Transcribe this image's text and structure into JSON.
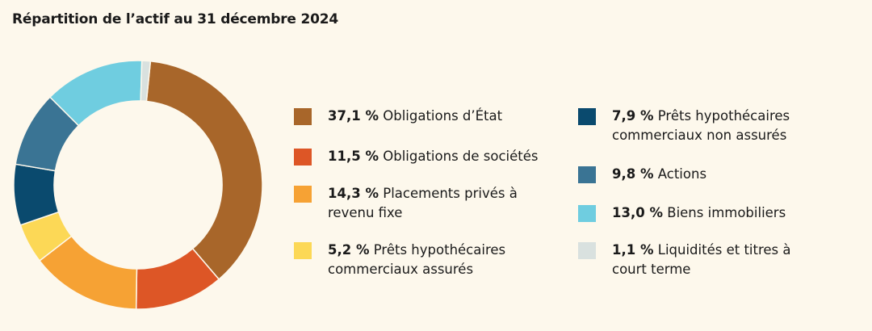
{
  "title": "Répartition de l’actif au 31 décembre 2024",
  "chart_data": {
    "type": "pie",
    "style": "donut",
    "title": "Répartition de l’actif au 31 décembre 2024",
    "legend_placement": "right",
    "slices": [
      {
        "pct_label": "37,1 %",
        "label": "Obligations d’État",
        "value": 37.1,
        "color": "#a8662a"
      },
      {
        "pct_label": "11,5 %",
        "label": "Obligations de sociétés",
        "value": 11.5,
        "color": "#dd5626"
      },
      {
        "pct_label": "14,3 %",
        "label": "Placements privés à revenu fixe",
        "value": 14.3,
        "color": "#f6a234"
      },
      {
        "pct_label": "5,2 %",
        "label": "Prêts hypothécaires commerciaux assurés",
        "value": 5.2,
        "color": "#fcd856"
      },
      {
        "pct_label": "7,9 %",
        "label": "Prêts hypothécaires commerciaux non assurés",
        "value": 7.9,
        "color": "#0a4a6e"
      },
      {
        "pct_label": "9,8 %",
        "label": "Actions",
        "value": 9.8,
        "color": "#3a7494"
      },
      {
        "pct_label": "13,0 %",
        "label": "Biens immobiliers",
        "value": 13.0,
        "color": "#6fcde0"
      },
      {
        "pct_label": "1,1 %",
        "label": "Liquidités et titres à court terme",
        "value": 1.1,
        "color": "#d9e1df"
      }
    ]
  }
}
